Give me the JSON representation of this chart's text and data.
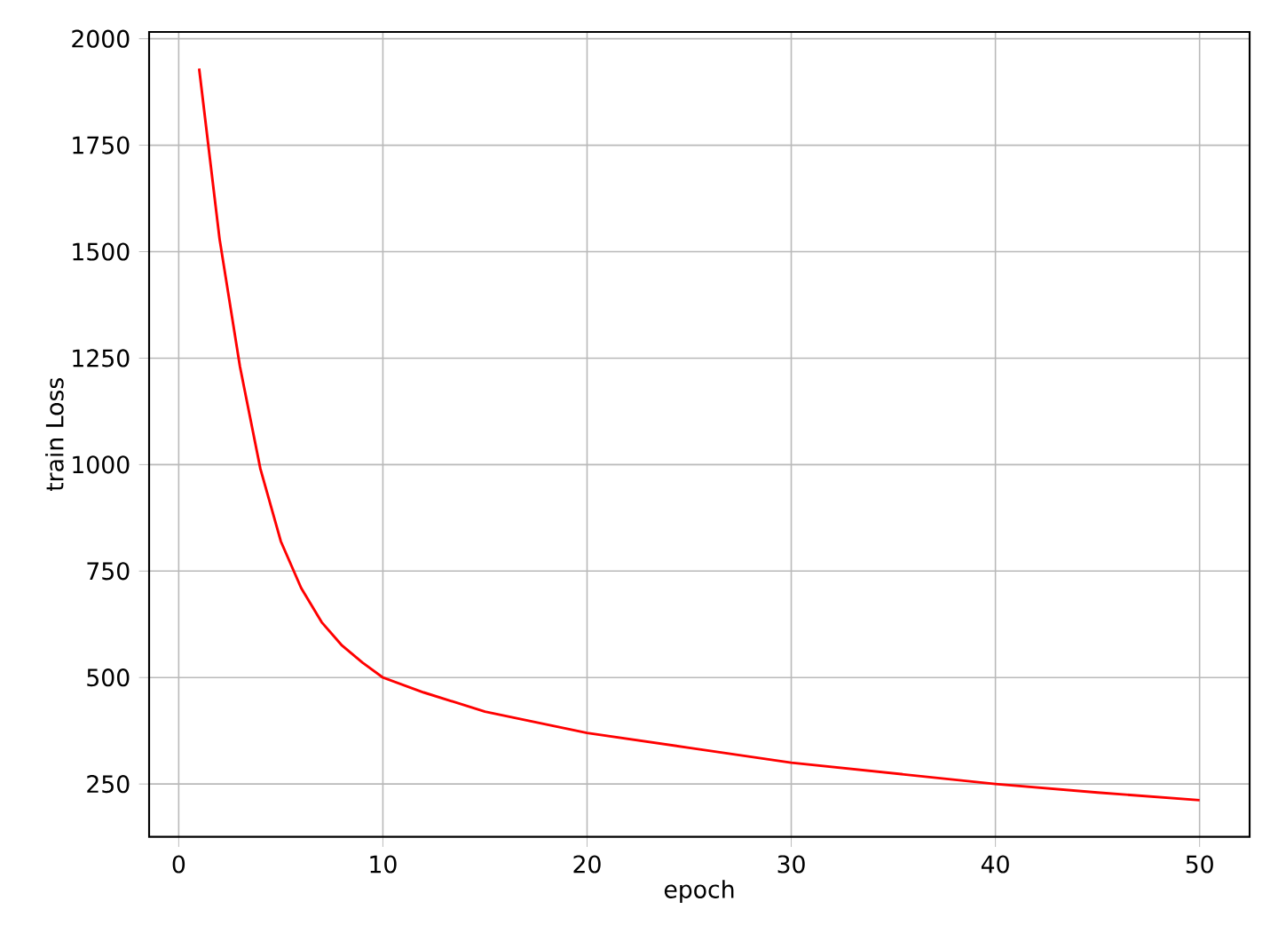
{
  "chart_data": {
    "type": "line",
    "xlabel": "epoch",
    "ylabel": "train Loss",
    "x": [
      1,
      2,
      3,
      4,
      5,
      6,
      7,
      8,
      9,
      10,
      12,
      15,
      20,
      25,
      30,
      35,
      40,
      45,
      50
    ],
    "series": [
      {
        "color": "#ff0000",
        "values": [
          1930,
          1530,
          1230,
          990,
          820,
          710,
          630,
          575,
          535,
          500,
          465,
          420,
          370,
          335,
          300,
          275,
          250,
          230,
          212
        ]
      }
    ],
    "xlim": [
      -1.45,
      52.45
    ],
    "ylim": [
      126,
      2016
    ],
    "xticks": [
      0,
      10,
      20,
      30,
      40,
      50
    ],
    "yticks": [
      250,
      500,
      750,
      1000,
      1250,
      1500,
      1750,
      2000
    ],
    "grid": true,
    "marker": "none",
    "line_style": "solid"
  }
}
